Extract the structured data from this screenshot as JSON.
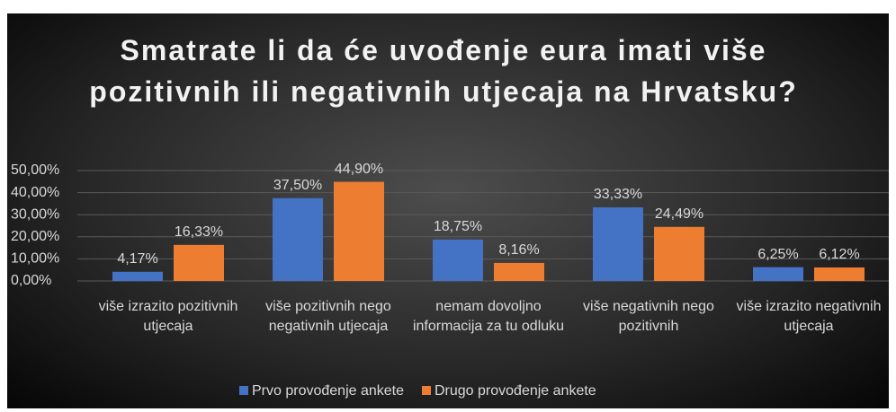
{
  "chart_data": {
    "type": "bar",
    "title": "Smatrate li da će uvođenje eura imati više pozitivnih ili negativnih utjecaja na Hrvatsku?",
    "categories": [
      "više izrazito pozitivnih utjecaja",
      "više pozitivnih nego negativnih utjecaja",
      "nemam dovoljno informacija za tu odluku",
      "više negativnih nego pozitivnih",
      "više izrazito negativnih utjecaja"
    ],
    "series": [
      {
        "name": "Prvo provođenje ankete",
        "color": "#4472c4",
        "values": [
          4.17,
          37.5,
          18.75,
          33.33,
          6.25
        ],
        "value_labels": [
          "4,17%",
          "37,50%",
          "18,75%",
          "33,33%",
          "6,25%"
        ]
      },
      {
        "name": "Drugo provođenje ankete",
        "color": "#ed7d31",
        "values": [
          16.33,
          44.9,
          8.16,
          24.49,
          6.12
        ],
        "value_labels": [
          "16,33%",
          "44,90%",
          "8,16%",
          "24,49%",
          "6,12%"
        ]
      }
    ],
    "ylim": [
      0,
      50
    ],
    "yticks": [
      {
        "value": 0,
        "label": "0,00%"
      },
      {
        "value": 10,
        "label": "10,00%"
      },
      {
        "value": 20,
        "label": "20,00%"
      },
      {
        "value": 30,
        "label": "30,00%"
      },
      {
        "value": 40,
        "label": "40,00%"
      },
      {
        "value": 50,
        "label": "50,00%"
      }
    ],
    "grid": true,
    "legend": "bottom"
  }
}
